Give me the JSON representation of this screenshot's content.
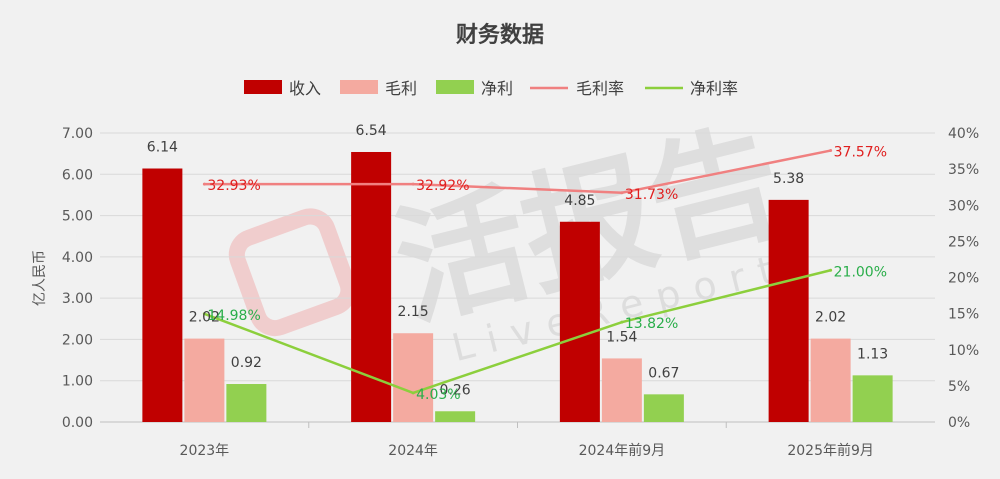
{
  "chart_data": {
    "type": "bar",
    "title": "财务数据",
    "categories": [
      "2023年",
      "2024年",
      "2024年前9月",
      "2025年前9月"
    ],
    "ylabel": "亿人民币",
    "ylim": [
      0,
      7
    ],
    "y_ticks": [
      "0.00",
      "1.00",
      "2.00",
      "3.00",
      "4.00",
      "5.00",
      "6.00",
      "7.00"
    ],
    "y2lim": [
      0,
      40
    ],
    "y2_ticks": [
      "0%",
      "5%",
      "10%",
      "15%",
      "20%",
      "25%",
      "30%",
      "35%",
      "40%"
    ],
    "legend_position": "top",
    "grid": "horizontal",
    "series": [
      {
        "name": "收入",
        "kind": "bar",
        "color": "#c00000",
        "values": [
          6.14,
          6.54,
          4.85,
          5.38
        ],
        "labels": [
          "6.14",
          "6.54",
          "4.85",
          "5.38"
        ]
      },
      {
        "name": "毛利",
        "kind": "bar",
        "color": "#f4aaa0",
        "values": [
          2.02,
          2.15,
          1.54,
          2.02
        ],
        "labels": [
          "2.02",
          "2.15",
          "1.54",
          "2.02"
        ]
      },
      {
        "name": "净利",
        "kind": "bar",
        "color": "#92d050",
        "values": [
          0.92,
          0.26,
          0.67,
          1.13
        ],
        "labels": [
          "0.92",
          "0.26",
          "0.67",
          "1.13"
        ]
      },
      {
        "name": "毛利率",
        "kind": "line",
        "axis": "right",
        "color": "#f08080",
        "label_color": "#e02020",
        "values": [
          32.93,
          32.92,
          31.73,
          37.57
        ],
        "labels": [
          "32.93%",
          "32.92%",
          "31.73%",
          "37.57%"
        ]
      },
      {
        "name": "净利率",
        "kind": "line",
        "axis": "right",
        "color": "#8ccf3c",
        "label_color": "#2aae4a",
        "values": [
          14.98,
          4.03,
          13.82,
          21.0
        ],
        "labels": [
          "14.98%",
          "4.03%",
          "13.82%",
          "21.00%"
        ]
      }
    ]
  },
  "watermark": {
    "text": "活报告",
    "sub": "LiveReport"
  }
}
